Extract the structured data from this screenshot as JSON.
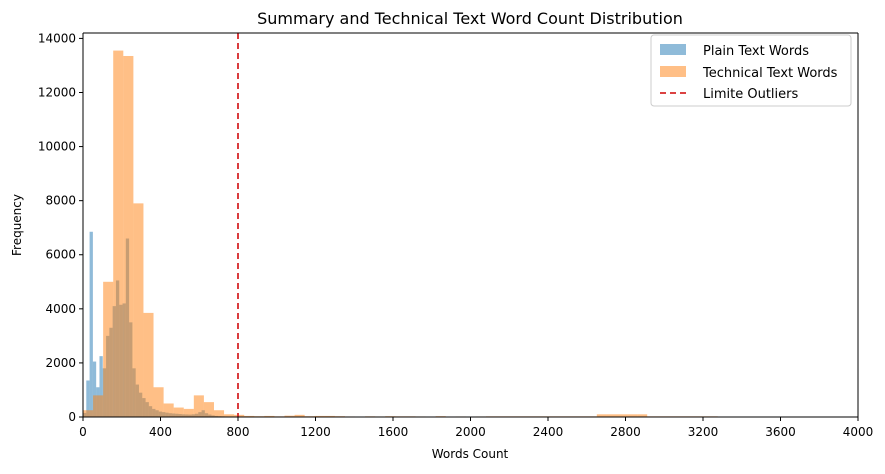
{
  "chart_data": {
    "type": "bar",
    "title": "Summary and Technical Text Word Count Distribution",
    "xlabel": "Words Count",
    "ylabel": "Frequency",
    "xlim": [
      0,
      4000
    ],
    "ylim": [
      0,
      14200
    ],
    "x_ticks": [
      0,
      400,
      800,
      1200,
      1600,
      2000,
      2400,
      2800,
      3200,
      3600,
      4000
    ],
    "y_ticks": [
      0,
      2000,
      4000,
      6000,
      8000,
      10000,
      12000,
      14000
    ],
    "grid": false,
    "legend_position": "top-right",
    "series": [
      {
        "name": "Plain Text Words",
        "color": "#1f77b4",
        "opacity": 0.5,
        "bin_width": 17,
        "bins": [
          [
            0,
            150
          ],
          [
            17,
            1350
          ],
          [
            34,
            6850
          ],
          [
            51,
            2050
          ],
          [
            68,
            1100
          ],
          [
            85,
            2250
          ],
          [
            102,
            1800
          ],
          [
            119,
            3000
          ],
          [
            136,
            3300
          ],
          [
            153,
            4100
          ],
          [
            170,
            5050
          ],
          [
            187,
            4150
          ],
          [
            204,
            4200
          ],
          [
            221,
            6600
          ],
          [
            238,
            3500
          ],
          [
            255,
            1800
          ],
          [
            272,
            1200
          ],
          [
            289,
            900
          ],
          [
            306,
            700
          ],
          [
            323,
            550
          ],
          [
            340,
            400
          ],
          [
            357,
            300
          ],
          [
            374,
            250
          ],
          [
            391,
            200
          ],
          [
            408,
            180
          ],
          [
            425,
            160
          ],
          [
            442,
            140
          ],
          [
            459,
            130
          ],
          [
            476,
            120
          ],
          [
            493,
            110
          ],
          [
            510,
            100
          ],
          [
            527,
            95
          ],
          [
            544,
            90
          ],
          [
            561,
            100
          ],
          [
            578,
            120
          ],
          [
            595,
            180
          ],
          [
            612,
            250
          ],
          [
            629,
            140
          ],
          [
            646,
            90
          ],
          [
            663,
            60
          ],
          [
            680,
            40
          ],
          [
            697,
            30
          ],
          [
            714,
            25
          ],
          [
            731,
            20
          ],
          [
            748,
            15
          ],
          [
            765,
            12
          ],
          [
            782,
            10
          ]
        ]
      },
      {
        "name": "Technical Text Words",
        "color": "#ff7f0e",
        "opacity": 0.5,
        "bin_width": 52,
        "bins": [
          [
            0,
            250
          ],
          [
            52,
            800
          ],
          [
            104,
            5000
          ],
          [
            156,
            13550
          ],
          [
            208,
            13350
          ],
          [
            260,
            7900
          ],
          [
            312,
            3850
          ],
          [
            364,
            1100
          ],
          [
            416,
            500
          ],
          [
            468,
            350
          ],
          [
            520,
            300
          ],
          [
            572,
            800
          ],
          [
            624,
            550
          ],
          [
            676,
            250
          ],
          [
            728,
            100
          ],
          [
            780,
            80
          ],
          [
            832,
            40
          ],
          [
            884,
            30
          ],
          [
            936,
            40
          ],
          [
            988,
            25
          ],
          [
            1040,
            50
          ],
          [
            1092,
            80
          ],
          [
            1144,
            30
          ],
          [
            1196,
            40
          ],
          [
            1248,
            40
          ],
          [
            1300,
            30
          ],
          [
            1352,
            20
          ],
          [
            1404,
            15
          ],
          [
            1456,
            25
          ],
          [
            1508,
            20
          ],
          [
            1560,
            30
          ],
          [
            1612,
            25
          ],
          [
            1664,
            25
          ],
          [
            1716,
            20
          ],
          [
            1768,
            15
          ],
          [
            1820,
            30
          ],
          [
            1872,
            15
          ],
          [
            1924,
            20
          ],
          [
            1976,
            15
          ],
          [
            2028,
            20
          ],
          [
            2080,
            25
          ],
          [
            2132,
            25
          ],
          [
            2184,
            25
          ],
          [
            2236,
            25
          ],
          [
            2288,
            25
          ],
          [
            2340,
            25
          ],
          [
            2392,
            25
          ],
          [
            2444,
            25
          ],
          [
            2496,
            25
          ],
          [
            2548,
            25
          ],
          [
            2600,
            25
          ],
          [
            2652,
            100
          ],
          [
            2704,
            100
          ],
          [
            2756,
            100
          ],
          [
            2808,
            100
          ],
          [
            2860,
            100
          ],
          [
            2912,
            25
          ],
          [
            2964,
            25
          ],
          [
            3016,
            25
          ],
          [
            3068,
            25
          ],
          [
            3120,
            25
          ],
          [
            3172,
            25
          ],
          [
            3224,
            25
          ]
        ]
      }
    ],
    "reference_lines": [
      {
        "name": "Limite Outliers",
        "x": 800,
        "color": "#d62728",
        "style": "dashed"
      }
    ]
  }
}
